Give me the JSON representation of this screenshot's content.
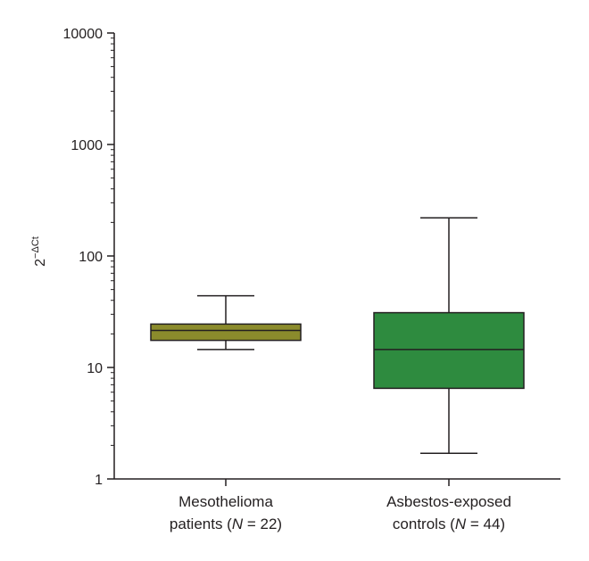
{
  "chart_data": {
    "type": "box",
    "ylabel": {
      "base": "2",
      "superscript": "−ΔCt"
    },
    "yscale": "log",
    "ylim": [
      1,
      10000
    ],
    "y_ticks": [
      {
        "value": 1,
        "label": "1"
      },
      {
        "value": 10,
        "label": "10"
      },
      {
        "value": 100,
        "label": "100"
      },
      {
        "value": 1000,
        "label": "1000"
      },
      {
        "value": 10000,
        "label": "10000"
      }
    ],
    "grid": false,
    "legend": "none",
    "boxes": [
      {
        "label_line1": "Mesothelioma",
        "label_line2_prefix": "patients (",
        "label_n_symbol": "N",
        "label_line2_suffix": " = 22)",
        "min": 14.5,
        "q1": 17.5,
        "median": 21.5,
        "q3": 24.5,
        "max": 44,
        "color": "#8b8b2c"
      },
      {
        "label_line1": "Asbestos-exposed",
        "label_line2_prefix": "controls (",
        "label_n_symbol": "N",
        "label_line2_suffix": " = 44)",
        "min": 1.7,
        "q1": 6.5,
        "median": 14.5,
        "q3": 31,
        "max": 220,
        "color": "#2e8b3f"
      }
    ]
  }
}
